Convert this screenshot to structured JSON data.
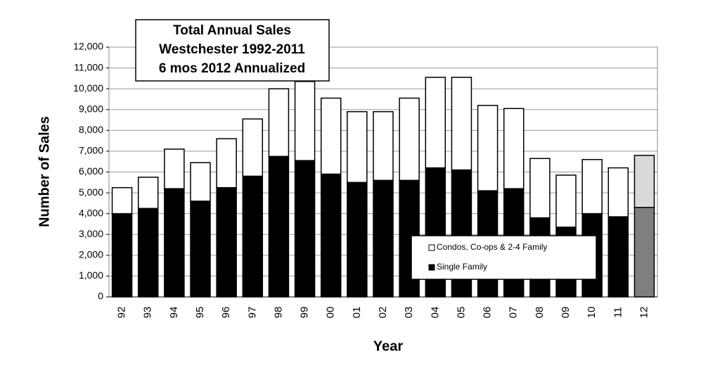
{
  "chart_data": {
    "type": "stacked_bar",
    "title": [
      "Total Annual Sales",
      "Westchester 1992-2011",
      "6 mos 2012 Annualized"
    ],
    "x_label": "Year",
    "y_label": "Number of Sales",
    "categories": [
      "92",
      "93",
      "94",
      "95",
      "96",
      "97",
      "98",
      "99",
      "00",
      "01",
      "02",
      "03",
      "04",
      "05",
      "06",
      "07",
      "08",
      "09",
      "10",
      "11",
      "12"
    ],
    "series": [
      {
        "name": "Single Family",
        "color": "#000000",
        "colors": [
          "#000000",
          "#000000",
          "#000000",
          "#000000",
          "#000000",
          "#000000",
          "#000000",
          "#000000",
          "#000000",
          "#000000",
          "#000000",
          "#000000",
          "#000000",
          "#000000",
          "#000000",
          "#000000",
          "#000000",
          "#000000",
          "#000000",
          "#000000",
          "#7f7f7f"
        ],
        "values": [
          4000,
          4250,
          5200,
          4600,
          5250,
          5800,
          6750,
          6550,
          5900,
          5500,
          5600,
          5600,
          6200,
          6100,
          5100,
          5200,
          3800,
          3350,
          4000,
          3850,
          4300
        ]
      },
      {
        "name": "Condos, Co-ops & 2-4 Family",
        "color": "#ffffff",
        "colors": [
          "#ffffff",
          "#ffffff",
          "#ffffff",
          "#ffffff",
          "#ffffff",
          "#ffffff",
          "#ffffff",
          "#ffffff",
          "#ffffff",
          "#ffffff",
          "#ffffff",
          "#ffffff",
          "#ffffff",
          "#ffffff",
          "#ffffff",
          "#ffffff",
          "#ffffff",
          "#ffffff",
          "#ffffff",
          "#ffffff",
          "#d9d9d9"
        ],
        "values": [
          1250,
          1500,
          1900,
          1850,
          2350,
          2750,
          3250,
          3800,
          3650,
          3400,
          3300,
          3950,
          4350,
          4450,
          4100,
          3850,
          2850,
          2500,
          2600,
          2350,
          2500
        ]
      }
    ],
    "ylim": [
      0,
      12000
    ],
    "yticks": [
      0,
      {
        "value": 1000,
        "label": "1,000"
      },
      {
        "value": 2000,
        "label": "2,000"
      },
      {
        "value": 3000,
        "label": "3,000"
      },
      {
        "value": 4000,
        "label": "4,000"
      },
      {
        "value": 5000,
        "label": "5,000"
      },
      {
        "value": 6000,
        "label": "6,000"
      },
      {
        "value": 7000,
        "label": "7,000"
      },
      {
        "value": 8000,
        "label": "8,000"
      },
      {
        "value": 9000,
        "label": "9,000"
      },
      {
        "value": 10000,
        "label": "10,000"
      },
      {
        "value": 11000,
        "label": "11,000"
      },
      {
        "value": 12000,
        "label": "12,000"
      }
    ],
    "grid": true,
    "legend": "lower right"
  }
}
